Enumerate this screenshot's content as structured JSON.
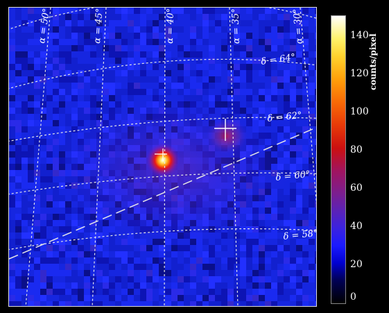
{
  "figure": {
    "type": "count map (sky image)",
    "colors": {
      "background": "#1422d8",
      "grid": "#dddddd",
      "frame": "#dcdcdc"
    },
    "ra_labels": [
      "α = 50°",
      "α = 45°",
      "α = 40°",
      "α = 35°",
      "α = 30°"
    ],
    "dec_labels": [
      "δ = 64°",
      "δ = 62°",
      "δ = 60°",
      "δ = 58°"
    ],
    "markers": [
      "cross-marker",
      "galactic-plane-dashed-line"
    ]
  },
  "colorbar": {
    "unit": "counts/pixel",
    "ticks": [
      "140",
      "120",
      "100",
      "80",
      "60",
      "40",
      "20",
      "0"
    ],
    "range": [
      0,
      150
    ]
  }
}
